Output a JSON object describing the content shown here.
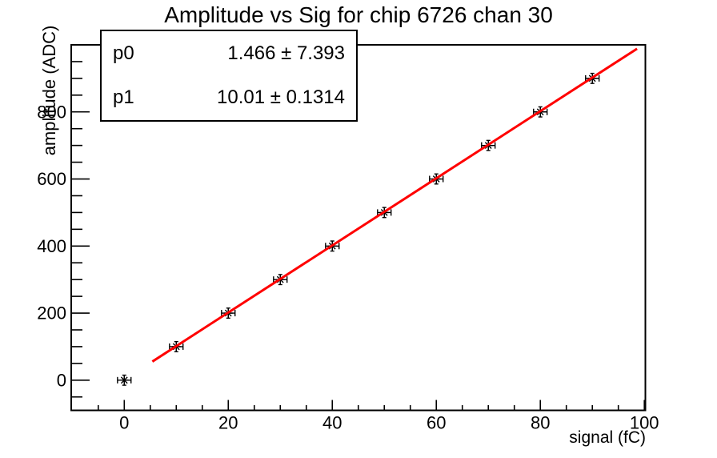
{
  "title": "Amplitude vs Sig for chip 6726 chan 30",
  "stats_box": {
    "rows": [
      {
        "name": "p0",
        "value": "1.466 ± 7.393"
      },
      {
        "name": "p1",
        "value": "10.01 ± 0.1314"
      }
    ]
  },
  "chart_data": {
    "type": "scatter",
    "title": "Amplitude vs Sig for chip 6726 chan 30",
    "xlabel": "signal (fC)",
    "ylabel": "amplitude (ADC)",
    "xlim": [
      -10.2,
      100.2
    ],
    "ylim": [
      -90,
      1000
    ],
    "x_major_ticks": [
      0,
      20,
      40,
      60,
      80,
      100
    ],
    "x_minor_step": 5,
    "y_major_ticks": [
      0,
      200,
      400,
      600,
      800
    ],
    "y_minor_step": 50,
    "grid": false,
    "legend": false,
    "points": {
      "x": [
        0,
        10,
        20,
        30,
        40,
        50,
        60,
        70,
        80,
        90
      ],
      "y": [
        0,
        100,
        200,
        300,
        400,
        500,
        600,
        700,
        800,
        900
      ],
      "xerr": 1.3,
      "yerr": 15,
      "marker": "asterisk",
      "color": "#000000"
    },
    "fit": {
      "label_p0": "p0",
      "p0": 1.466,
      "p0_err": 7.393,
      "label_p1": "p1",
      "p1": 10.01,
      "p1_err": 0.1314,
      "x_range": [
        5.4,
        98.6
      ],
      "color": "#ff0000"
    }
  }
}
